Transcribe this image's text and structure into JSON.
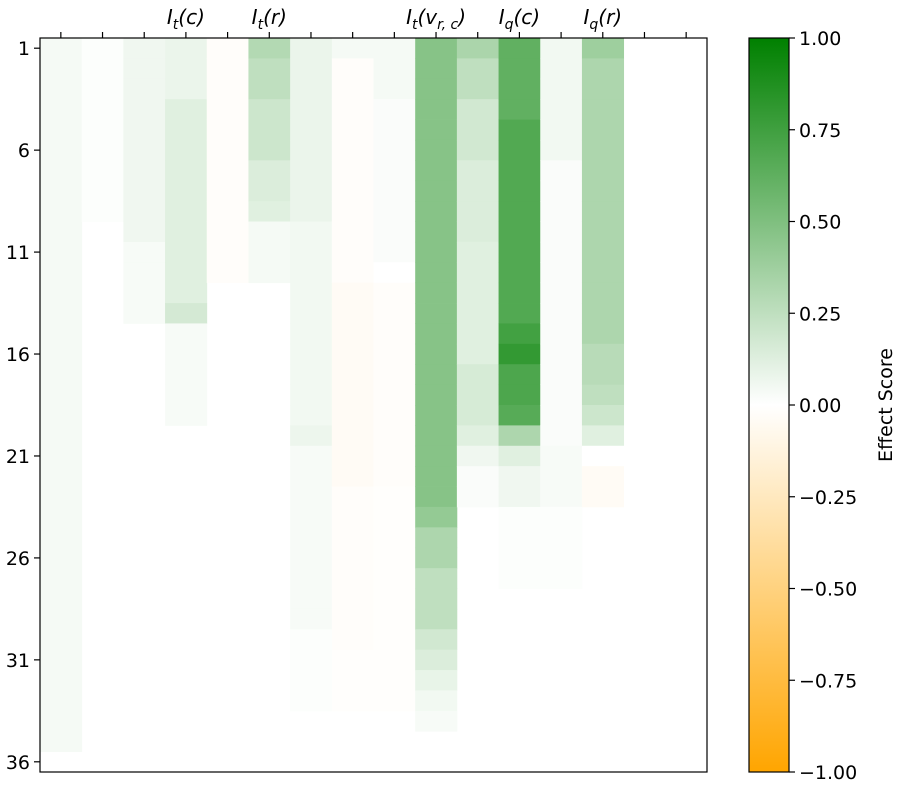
{
  "chart_data": {
    "type": "heatmap",
    "title": "",
    "n_rows": 36,
    "n_cols": 16,
    "y_ticks": [
      {
        "row": 1,
        "label": "1"
      },
      {
        "row": 6,
        "label": "6"
      },
      {
        "row": 11,
        "label": "11"
      },
      {
        "row": 16,
        "label": "16"
      },
      {
        "row": 21,
        "label": "21"
      },
      {
        "row": 26,
        "label": "26"
      },
      {
        "row": 31,
        "label": "31"
      },
      {
        "row": 36,
        "label": "36"
      }
    ],
    "x_ticks": [
      {
        "col": 4,
        "label": "I_t(c)",
        "base": "I",
        "sub": "t",
        "arg": "(c)"
      },
      {
        "col": 6,
        "label": "I_t(r)",
        "base": "I",
        "sub": "t",
        "arg": "(r)"
      },
      {
        "col": 10,
        "label": "I_t(v_{r,c})",
        "base": "I",
        "sub": "t",
        "arg": "(v",
        "arg_sub": "r, c",
        "arg_end": ")"
      },
      {
        "col": 12,
        "label": "I_q(c)",
        "base": "I",
        "sub": "q",
        "arg": "(c)"
      },
      {
        "col": 14,
        "label": "I_q(r)",
        "base": "I",
        "sub": "q",
        "arg": "(r)"
      }
    ],
    "minor_tick_cols": [
      1,
      2,
      3,
      4,
      5,
      6,
      7,
      8,
      9,
      10,
      11,
      12,
      13,
      14,
      15,
      16
    ],
    "colorbar": {
      "label": "Effect Score",
      "vmin": -1.0,
      "vmax": 1.0,
      "ticks": [
        1.0,
        0.75,
        0.5,
        0.25,
        0.0,
        -0.25,
        -0.5,
        -0.75,
        -1.0
      ],
      "tick_labels": [
        "1.00",
        "0.75",
        "0.50",
        "0.25",
        "0.00",
        "−0.25",
        "−0.50",
        "−0.75",
        "−1.00"
      ],
      "colors": {
        "negative": "#ffa500",
        "zero": "#ffffff",
        "positive": "#008000"
      }
    },
    "columns": [
      {
        "col": 1,
        "segments": [
          [
            1,
            35,
            0.04
          ]
        ]
      },
      {
        "col": 2,
        "segments": [
          [
            1,
            9,
            0.01
          ]
        ]
      },
      {
        "col": 3,
        "segments": [
          [
            1,
            10,
            0.06
          ],
          [
            11,
            14,
            0.03
          ]
        ]
      },
      {
        "col": 4,
        "segments": [
          [
            1,
            3,
            0.08
          ],
          [
            4,
            10,
            0.12
          ],
          [
            11,
            13,
            0.12
          ],
          [
            14,
            14,
            0.17
          ],
          [
            15,
            19,
            0.03
          ]
        ]
      },
      {
        "col": 5,
        "segments": [
          [
            1,
            12,
            -0.02
          ]
        ]
      },
      {
        "col": 6,
        "segments": [
          [
            1,
            1,
            0.3
          ],
          [
            2,
            3,
            0.25
          ],
          [
            4,
            6,
            0.2
          ],
          [
            7,
            8,
            0.14
          ],
          [
            9,
            9,
            0.12
          ],
          [
            10,
            12,
            0.04
          ]
        ]
      },
      {
        "col": 7,
        "segments": [
          [
            1,
            9,
            0.08
          ],
          [
            10,
            19,
            0.05
          ],
          [
            20,
            20,
            0.07
          ],
          [
            21,
            29,
            0.03
          ],
          [
            30,
            33,
            0.01
          ]
        ]
      },
      {
        "col": 8,
        "segments": [
          [
            1,
            1,
            0.04
          ],
          [
            2,
            12,
            -0.02
          ],
          [
            13,
            22,
            -0.04
          ],
          [
            23,
            30,
            -0.02
          ],
          [
            31,
            33,
            -0.01
          ]
        ]
      },
      {
        "col": 9,
        "segments": [
          [
            1,
            3,
            0.04
          ],
          [
            4,
            11,
            0.02
          ],
          [
            12,
            12,
            0.0
          ],
          [
            13,
            22,
            -0.02
          ],
          [
            23,
            33,
            -0.01
          ]
        ]
      },
      {
        "col": 10,
        "segments": [
          [
            1,
            23,
            0.47
          ],
          [
            24,
            24,
            0.42
          ],
          [
            25,
            26,
            0.32
          ],
          [
            27,
            29,
            0.25
          ],
          [
            30,
            30,
            0.18
          ],
          [
            31,
            31,
            0.14
          ],
          [
            32,
            32,
            0.09
          ],
          [
            33,
            33,
            0.05
          ],
          [
            34,
            34,
            0.03
          ]
        ]
      },
      {
        "col": 11,
        "segments": [
          [
            1,
            1,
            0.33
          ],
          [
            2,
            3,
            0.25
          ],
          [
            4,
            6,
            0.18
          ],
          [
            7,
            10,
            0.14
          ],
          [
            11,
            16,
            0.12
          ],
          [
            17,
            19,
            0.16
          ],
          [
            20,
            20,
            0.12
          ],
          [
            21,
            21,
            0.06
          ],
          [
            22,
            23,
            0.02
          ]
        ]
      },
      {
        "col": 12,
        "segments": [
          [
            1,
            4,
            0.62
          ],
          [
            5,
            14,
            0.68
          ],
          [
            15,
            15,
            0.74
          ],
          [
            16,
            16,
            0.8
          ],
          [
            17,
            18,
            0.7
          ],
          [
            19,
            19,
            0.66
          ],
          [
            20,
            20,
            0.32
          ],
          [
            21,
            21,
            0.12
          ],
          [
            22,
            23,
            0.06
          ],
          [
            24,
            27,
            0.01
          ]
        ]
      },
      {
        "col": 13,
        "segments": [
          [
            1,
            6,
            0.05
          ],
          [
            7,
            20,
            0.02
          ],
          [
            21,
            23,
            0.03
          ],
          [
            24,
            27,
            0.01
          ]
        ]
      },
      {
        "col": 14,
        "segments": [
          [
            1,
            1,
            0.38
          ],
          [
            2,
            15,
            0.32
          ],
          [
            16,
            17,
            0.28
          ],
          [
            18,
            18,
            0.25
          ],
          [
            19,
            19,
            0.2
          ],
          [
            20,
            20,
            0.12
          ],
          [
            21,
            21,
            0.0
          ],
          [
            22,
            23,
            -0.04
          ]
        ]
      },
      {
        "col": 15,
        "segments": []
      },
      {
        "col": 16,
        "segments": []
      }
    ]
  }
}
